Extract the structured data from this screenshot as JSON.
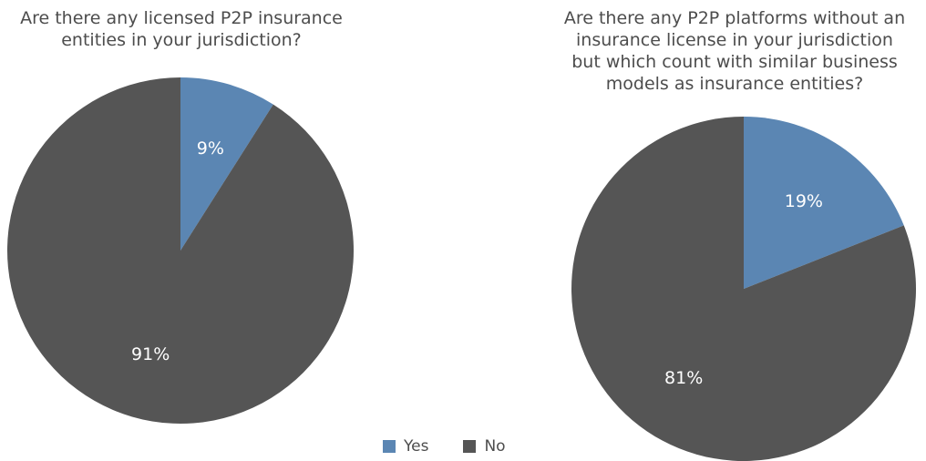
{
  "colors": {
    "yes": "#5b86b3",
    "no": "#555555"
  },
  "legend": [
    {
      "label": "Yes",
      "color": "#5b86b3"
    },
    {
      "label": "No",
      "color": "#555555"
    }
  ],
  "chart_data": [
    {
      "type": "pie",
      "title": "Are there any licensed P2P insurance\nentities in your jurisdiction?",
      "categories": [
        "Yes",
        "No"
      ],
      "values": [
        9,
        91
      ],
      "labels": [
        "9%",
        "91%"
      ]
    },
    {
      "type": "pie",
      "title": "Are there any P2P platforms without an\ninsurance license in your jurisdiction\nbut which count with similar business\nmodels as insurance entities?",
      "categories": [
        "Yes",
        "No"
      ],
      "values": [
        19,
        81
      ],
      "labels": [
        "19%",
        "81%"
      ]
    }
  ]
}
